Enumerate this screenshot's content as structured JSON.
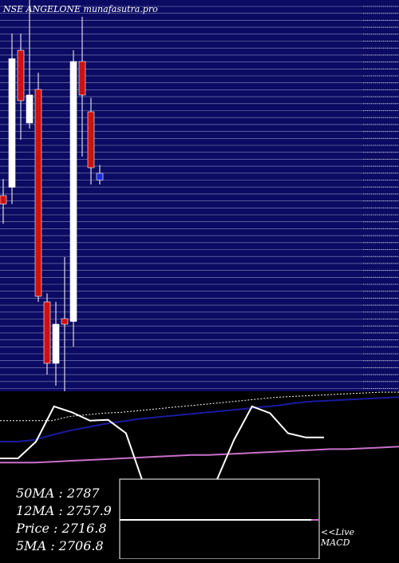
{
  "title": "NSE ANGELONE munafasutra.pro",
  "colors": {
    "background": "#0b0b63",
    "gridline": "#b5b5d8",
    "bullish": "#ffffff",
    "bearish": "#cc1111",
    "current": "#1a2bd6",
    "ma_long": "#1a1aa0",
    "ma_short": "#c870c8",
    "ma_dotted": "#ffffff",
    "macd_line": "#ffffff",
    "macd_panel": "#000000"
  },
  "chart_data": [
    {
      "type": "candlestick",
      "title": "NSE ANGELONE munafasutra.pro",
      "y_scale": "unlabeled",
      "ylim": [
        2450,
        3150
      ],
      "candles": [
        {
          "open": 2800,
          "close": 2785,
          "high": 2830,
          "low": 2750,
          "color": "bearish"
        },
        {
          "open": 2815,
          "close": 3045,
          "high": 3090,
          "low": 2785,
          "color": "bullish"
        },
        {
          "open": 3060,
          "close": 2970,
          "high": 3090,
          "low": 2900,
          "color": "bearish"
        },
        {
          "open": 2930,
          "close": 2980,
          "high": 3150,
          "low": 2920,
          "color": "bullish"
        },
        {
          "open": 2990,
          "close": 2620,
          "high": 3020,
          "low": 2610,
          "color": "bearish"
        },
        {
          "open": 2610,
          "close": 2500,
          "high": 2625,
          "low": 2480,
          "color": "bearish"
        },
        {
          "open": 2500,
          "close": 2570,
          "high": 2610,
          "low": 2460,
          "color": "bullish"
        },
        {
          "open": 2580,
          "close": 2570,
          "high": 2690,
          "low": 2450,
          "color": "bearish"
        },
        {
          "open": 2575,
          "close": 3040,
          "high": 3060,
          "low": 2530,
          "color": "bullish"
        },
        {
          "open": 3040,
          "close": 2980,
          "high": 3120,
          "low": 2870,
          "color": "bearish"
        },
        {
          "open": 2950,
          "close": 2850,
          "high": 2975,
          "low": 2820,
          "color": "bearish"
        },
        {
          "open": 2840,
          "close": 2828,
          "high": 2855,
          "low": 2820,
          "color": "current"
        }
      ]
    },
    {
      "type": "line",
      "title": "",
      "series": [
        {
          "color": "ma_dotted",
          "values": [
            0.35,
            0.35,
            0.35,
            0.35,
            0.3,
            0.28,
            0.26,
            0.25,
            0.23,
            0.21,
            0.19,
            0.17,
            0.15,
            0.13,
            0.11,
            0.09,
            0.07,
            0.06,
            0.05,
            0.04,
            0.03,
            0.02,
            0.01,
            0.01
          ]
        },
        {
          "color": "ma_long",
          "values": [
            0.6,
            0.6,
            0.58,
            0.52,
            0.47,
            0.43,
            0.39,
            0.36,
            0.33,
            0.31,
            0.29,
            0.27,
            0.25,
            0.23,
            0.21,
            0.19,
            0.17,
            0.14,
            0.12,
            0.11,
            0.1,
            0.09,
            0.08,
            0.07
          ]
        },
        {
          "color": "ma_short",
          "values": [
            0.85,
            0.85,
            0.85,
            0.84,
            0.83,
            0.82,
            0.81,
            0.8,
            0.79,
            0.78,
            0.77,
            0.76,
            0.76,
            0.75,
            0.74,
            0.73,
            0.72,
            0.71,
            0.7,
            0.69,
            0.69,
            0.68,
            0.67,
            0.66
          ]
        },
        {
          "color": "macd_line",
          "values": [
            0.8,
            0.8,
            0.6,
            0.18,
            0.25,
            0.35,
            0.34,
            0.5,
            1.12,
            1.18,
            1.18,
            1.08,
            1.08,
            0.58,
            0.18,
            0.26,
            0.5,
            0.55,
            0.55
          ]
        }
      ]
    }
  ],
  "stats": {
    "ma50": "50MA : 2787",
    "ma12": "12MA : 2757.9",
    "price": "Price   : 2716.8",
    "ma5": "5MA : 2706.8"
  },
  "live_label": "<<Live",
  "macd_label": "MACD"
}
